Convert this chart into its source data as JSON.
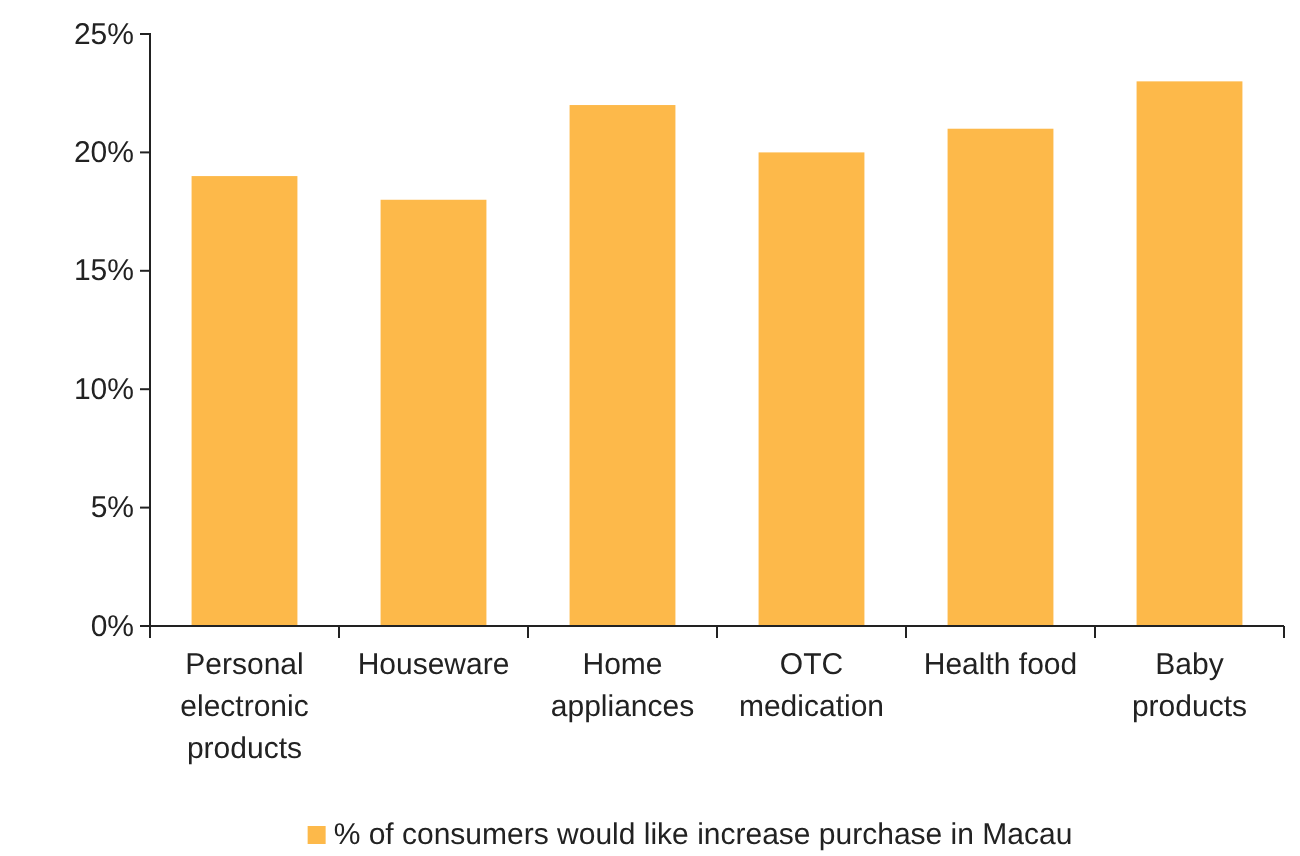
{
  "chart_data": {
    "type": "bar",
    "categories": [
      "Personal electronic products",
      "Houseware",
      "Home appliances",
      "OTC medication",
      "Health food",
      "Baby products"
    ],
    "series": [
      {
        "name": "% of consumers would like increase purchase in Macau",
        "color": "#fdb94a",
        "values": [
          19,
          18,
          22,
          20,
          21,
          23
        ]
      }
    ],
    "ylim": [
      0,
      25
    ],
    "yticks": [
      {
        "value": 0,
        "label": "0%"
      },
      {
        "value": 5,
        "label": "5%"
      },
      {
        "value": 10,
        "label": "10%"
      },
      {
        "value": 15,
        "label": "15%"
      },
      {
        "value": 20,
        "label": "20%"
      },
      {
        "value": 25,
        "label": "25%"
      }
    ],
    "grid": false,
    "legend": "bottom"
  }
}
